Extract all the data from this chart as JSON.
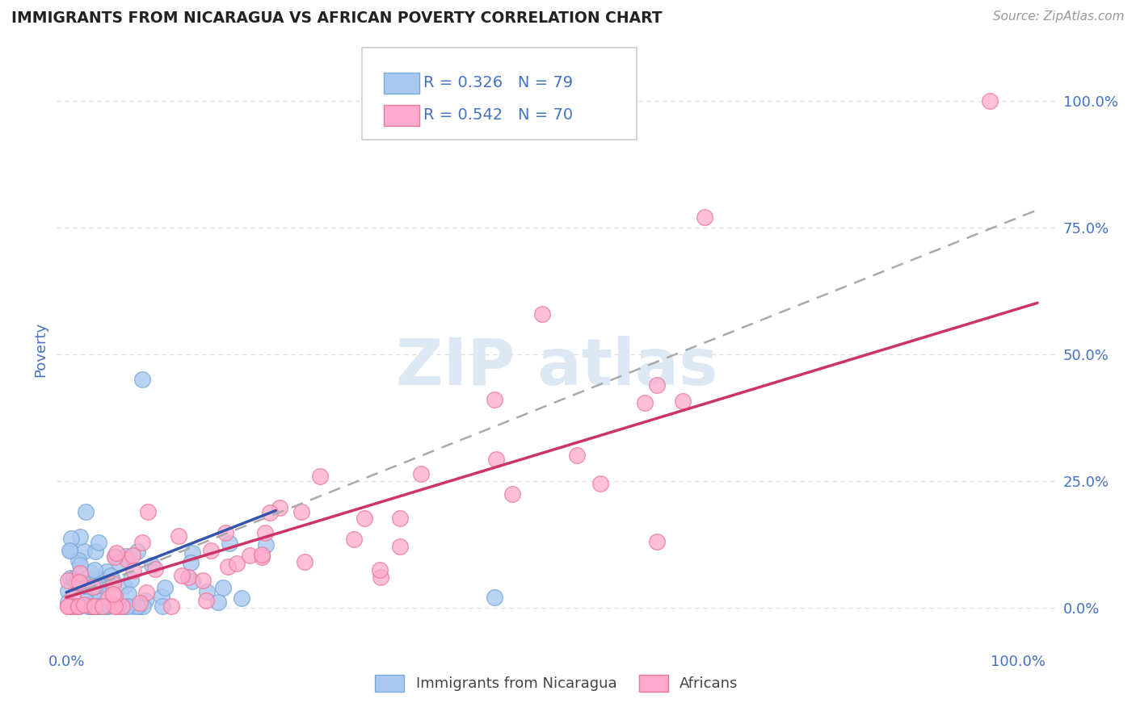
{
  "title": "IMMIGRANTS FROM NICARAGUA VS AFRICAN POVERTY CORRELATION CHART",
  "source": "Source: ZipAtlas.com",
  "ylabel": "Poverty",
  "legend_label1": "Immigrants from Nicaragua",
  "legend_label2": "Africans",
  "series1": {
    "R": 0.326,
    "N": 79,
    "face_color": "#aac8f0",
    "edge_color": "#7aaad8",
    "trendline_color": "#3355aa",
    "trendline_style": "solid"
  },
  "series2": {
    "R": 0.542,
    "N": 70,
    "face_color": "#ffaacc",
    "edge_color": "#ee7799",
    "trendline_color": "#cc3366",
    "trendline_style": "solid"
  },
  "dashed_line_color": "#aaaaaa",
  "background_color": "#ffffff",
  "grid_color": "#dddddd",
  "title_color": "#222222",
  "tick_color": "#4472c4",
  "watermark_color": "#dde8f5"
}
